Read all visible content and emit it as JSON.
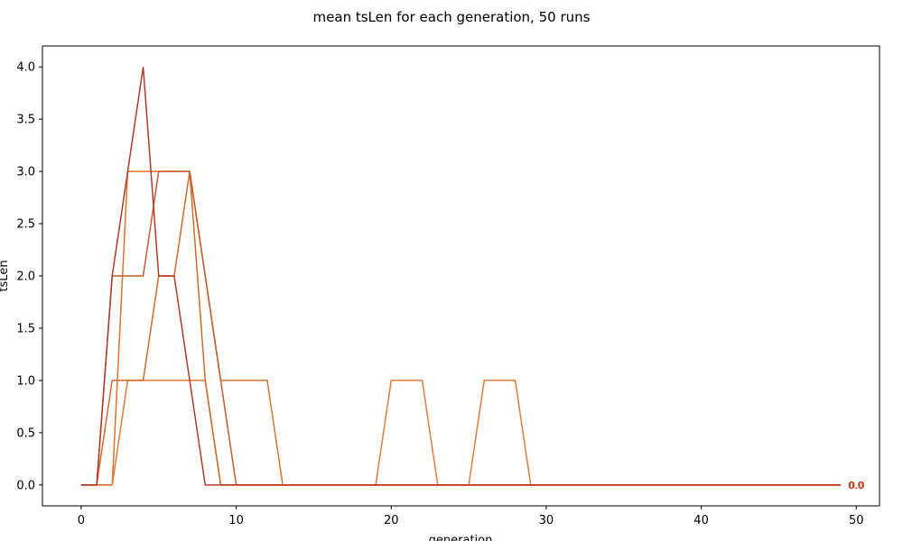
{
  "chart_data": {
    "type": "line",
    "title": "mean tsLen for each generation, 50 runs",
    "xlabel": "generation",
    "ylabel": "tsLen",
    "xlim": [
      -2.5,
      51.5
    ],
    "ylim": [
      -0.2,
      4.2
    ],
    "xticks": [
      0,
      10,
      20,
      30,
      40,
      50
    ],
    "xtick_labels": [
      "0",
      "10",
      "20",
      "30",
      "40",
      "50"
    ],
    "yticks": [
      0.0,
      0.5,
      1.0,
      1.5,
      2.0,
      2.5,
      3.0,
      3.5,
      4.0
    ],
    "ytick_labels": [
      "0.0",
      "0.5",
      "1.0",
      "1.5",
      "2.0",
      "2.5",
      "3.0",
      "3.5",
      "4.0"
    ],
    "grid": false,
    "series": [
      {
        "color": "#e07b39",
        "x": [
          0,
          1,
          2,
          3,
          4,
          5,
          6,
          7,
          8,
          9,
          10,
          11,
          12,
          13,
          14,
          15,
          16,
          17,
          18,
          19,
          20,
          21,
          22,
          23,
          24,
          25,
          26,
          27,
          28,
          29,
          49
        ],
        "values": [
          0,
          0,
          0,
          1,
          1,
          1,
          1,
          1,
          1,
          0,
          0,
          0,
          0,
          0,
          0,
          0,
          0,
          0,
          0,
          0,
          1,
          1,
          1,
          0,
          0,
          0,
          1,
          1,
          1,
          0,
          0
        ],
        "end_label": "0.0"
      },
      {
        "color": "#d9732f",
        "x": [
          0,
          1,
          2,
          3,
          4,
          5,
          6,
          7,
          8,
          9,
          10,
          11,
          12,
          13,
          49
        ],
        "values": [
          0,
          0,
          0,
          3,
          3,
          3,
          3,
          3,
          2,
          1,
          1,
          1,
          1,
          0,
          0
        ],
        "end_label": "0.0"
      },
      {
        "color": "#cf6a2a",
        "x": [
          0,
          1,
          2,
          3,
          4,
          5,
          6,
          7,
          8,
          9,
          49
        ],
        "values": [
          0,
          0,
          1,
          1,
          1,
          2,
          2,
          3,
          1,
          0,
          0
        ],
        "end_label": "0.0"
      },
      {
        "color": "#c55a2e",
        "x": [
          0,
          1,
          2,
          3,
          4,
          5,
          6,
          7,
          8,
          9,
          10,
          49
        ],
        "values": [
          0,
          0,
          2,
          2,
          2,
          3,
          3,
          3,
          2,
          1,
          0,
          0
        ],
        "end_label": "0.0"
      },
      {
        "color": "#b23a2a",
        "x": [
          0,
          1,
          2,
          3,
          4,
          5,
          6,
          7,
          8,
          9,
          49
        ],
        "values": [
          0,
          0,
          2,
          3,
          4,
          2,
          2,
          1,
          0,
          0,
          0
        ],
        "end_label": "0.0"
      }
    ]
  }
}
